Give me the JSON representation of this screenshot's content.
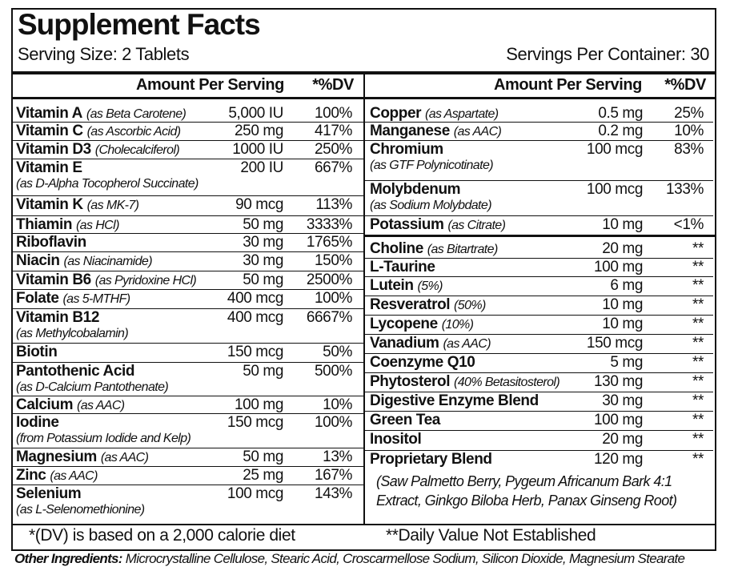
{
  "title": "Supplement Facts",
  "serving_size": "Serving Size: 2 Tablets",
  "servings_per_container": "Servings Per Container: 30",
  "header": {
    "amount": "Amount Per Serving",
    "dv": "*%DV"
  },
  "left_rows": [
    {
      "name": "Vitamin A",
      "note": "(as Beta Carotene)",
      "amount": "5,000 IU",
      "dv": "100%"
    },
    {
      "name": "Vitamin C",
      "note": "(as Ascorbic Acid)",
      "amount": "250 mg",
      "dv": "417%"
    },
    {
      "name": "Vitamin D3",
      "note": "(Cholecalciferol)",
      "amount": "1000 IU",
      "dv": "250%"
    },
    {
      "name": "Vitamin E",
      "note": "(as D-Alpha Tocopherol Succinate)",
      "amount": "200 IU",
      "dv": "667%"
    },
    {
      "name": "Vitamin K",
      "note": "(as MK-7)",
      "amount": "90 mcg",
      "dv": "113%"
    },
    {
      "name": "Thiamin",
      "note": "(as HCl)",
      "amount": "50 mg",
      "dv": "3333%"
    },
    {
      "name": "Riboflavin",
      "amount": "30 mg",
      "dv": "1765%"
    },
    {
      "name": "Niacin",
      "note": "(as Niacinamide)",
      "amount": "30 mg",
      "dv": "150%"
    },
    {
      "name": "Vitamin B6",
      "note": "(as Pyridoxine HCl)",
      "amount": "50 mg",
      "dv": "2500%"
    },
    {
      "name": "Folate",
      "note": "(as 5-MTHF)",
      "amount": "400 mcg",
      "dv": "100%"
    },
    {
      "name": "Vitamin B12",
      "note": "(as Methylcobalamin)",
      "amount": "400 mcg",
      "dv": "6667%"
    },
    {
      "name": "Biotin",
      "amount": "150 mcg",
      "dv": "50%"
    },
    {
      "name": "Pantothenic Acid",
      "note": "(as D-Calcium Pantothenate)",
      "amount": "50 mg",
      "dv": "500%"
    },
    {
      "name": "Calcium",
      "note": "(as AAC)",
      "amount": "100 mg",
      "dv": "10%"
    },
    {
      "name": "Iodine",
      "note": "(from Potassium Iodide and Kelp)",
      "amount": "150 mcg",
      "dv": "100%"
    },
    {
      "name": "Magnesium",
      "note": "(as AAC)",
      "amount": "50 mg",
      "dv": "13%"
    },
    {
      "name": "Zinc",
      "note": "(as AAC)",
      "amount": "25 mg",
      "dv": "167%"
    },
    {
      "name": "Selenium",
      "note": "(as L-Selenomethionine)",
      "amount": "100 mcg",
      "dv": "143%"
    }
  ],
  "right_rows": [
    {
      "name": "Copper",
      "note": "(as Aspartate)",
      "amount": "0.5 mg",
      "dv": "25%"
    },
    {
      "name": "Manganese",
      "note": "(as AAC)",
      "amount": "0.2 mg",
      "dv": "10%"
    },
    {
      "name": "Chromium",
      "note": "(as GTF Polynicotinate)",
      "amount": "100 mcg",
      "dv": "83%"
    },
    {
      "name": "Molybdenum",
      "note": "(as Sodium Molybdate)",
      "amount": "100 mcg",
      "dv": "133%"
    },
    {
      "name": "Potassium",
      "note": "(as Citrate)",
      "amount": "10 mg",
      "dv": "<1%"
    },
    {
      "name": "Choline",
      "note": "(as Bitartrate)",
      "amount": "20 mg",
      "dv": "**"
    },
    {
      "name": "L-Taurine",
      "amount": "100 mg",
      "dv": "**"
    },
    {
      "name": "Lutein",
      "note": "(5%)",
      "amount": "6 mg",
      "dv": "**"
    },
    {
      "name": "Resveratrol",
      "note": "(50%)",
      "amount": "10 mg",
      "dv": "**"
    },
    {
      "name": "Lycopene",
      "note": "(10%)",
      "amount": "10 mg",
      "dv": "**"
    },
    {
      "name": "Vanadium",
      "note": "(as AAC)",
      "amount": "150 mcg",
      "dv": "**"
    },
    {
      "name": "Coenzyme Q10",
      "amount": "5 mg",
      "dv": "**"
    },
    {
      "name": "Phytosterol",
      "note": "(40% Betasitosterol)",
      "amount": "130 mg",
      "dv": "**"
    },
    {
      "name": "Digestive Enzyme Blend",
      "amount": "30 mg",
      "dv": "**"
    },
    {
      "name": "Green Tea",
      "amount": "100 mg",
      "dv": "**"
    },
    {
      "name": "Inositol",
      "amount": "20 mg",
      "dv": "**"
    },
    {
      "name": "Proprietary Blend",
      "note": "(Saw Palmetto Berry, Pygeum Africanum Bark 4:1 Extract, Ginkgo Biloba Herb, Panax Ginseng Root)",
      "amount": "120 mg",
      "dv": "**"
    }
  ],
  "footer": {
    "dv_note": "*(DV) is based on a 2,000 calorie diet",
    "not_established": "**Daily Value Not Established"
  },
  "other_ingredients": {
    "label": "Other Ingredients:",
    "text": "Microcrystalline Cellulose, Stearic Acid, Croscarmellose Sodium, Silicon Dioxide, Magnesium Stearate"
  }
}
